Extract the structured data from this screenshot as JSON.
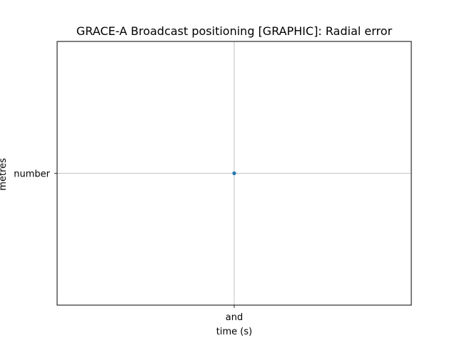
{
  "chart_data": {
    "type": "scatter",
    "title": "GRACE-A Broadcast positioning [GRAPHIC]: Radial error",
    "xlabel": "time (s)",
    "ylabel": "metres",
    "x_categories": [
      "and"
    ],
    "y_categories": [
      "number"
    ],
    "points": [
      {
        "x": "and",
        "y": "number"
      }
    ],
    "grid": true,
    "legend": "none",
    "colors": {
      "marker": "#1f77b4",
      "grid": "#b0b0b0",
      "axes": "#000000"
    }
  }
}
